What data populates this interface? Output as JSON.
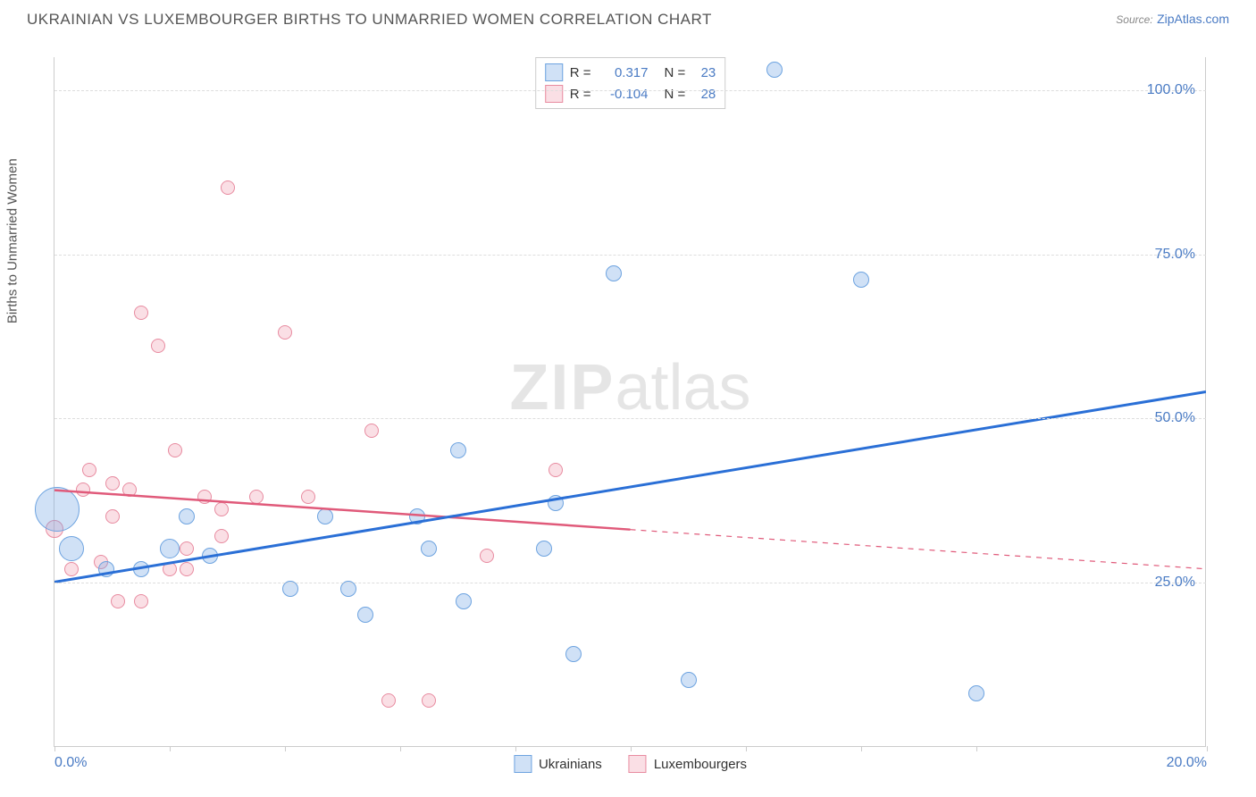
{
  "title": "UKRAINIAN VS LUXEMBOURGER BIRTHS TO UNMARRIED WOMEN CORRELATION CHART",
  "source_label": "Source:",
  "source_link": "ZipAtlas.com",
  "watermark_bold": "ZIP",
  "watermark_rest": "atlas",
  "ylabel": "Births to Unmarried Women",
  "chart": {
    "type": "scatter",
    "xlim": [
      0,
      20
    ],
    "ylim": [
      0,
      105
    ],
    "ytick_values": [
      25,
      50,
      75,
      100
    ],
    "ytick_labels": [
      "25.0%",
      "50.0%",
      "75.0%",
      "100.0%"
    ],
    "xtick_values": [
      0,
      2,
      4,
      6,
      8,
      10,
      12,
      14,
      16,
      20
    ],
    "xtick_labels_visible": {
      "0": "0.0%",
      "20": "20.0%"
    },
    "background_color": "#ffffff",
    "grid_color": "#dddddd",
    "axis_color": "#cccccc",
    "label_color": "#4a7bc4"
  },
  "series": {
    "ukrainians": {
      "label": "Ukrainians",
      "fill": "rgba(120,170,230,0.35)",
      "stroke": "#6da3e0",
      "trend_stroke": "#2a6fd6",
      "r": 0.317,
      "n": 23,
      "trend": {
        "x1": 0,
        "y1": 25,
        "x2": 20,
        "y2": 54
      },
      "points": [
        {
          "x": 0.05,
          "y": 36,
          "r": 25
        },
        {
          "x": 0.3,
          "y": 30,
          "r": 14
        },
        {
          "x": 0.9,
          "y": 27,
          "r": 9
        },
        {
          "x": 1.5,
          "y": 27,
          "r": 9
        },
        {
          "x": 2.0,
          "y": 30,
          "r": 11
        },
        {
          "x": 2.3,
          "y": 35,
          "r": 9
        },
        {
          "x": 2.7,
          "y": 29,
          "r": 9
        },
        {
          "x": 4.1,
          "y": 24,
          "r": 9
        },
        {
          "x": 4.7,
          "y": 35,
          "r": 9
        },
        {
          "x": 5.1,
          "y": 24,
          "r": 9
        },
        {
          "x": 5.4,
          "y": 20,
          "r": 9
        },
        {
          "x": 6.3,
          "y": 35,
          "r": 9
        },
        {
          "x": 6.5,
          "y": 30,
          "r": 9
        },
        {
          "x": 7.0,
          "y": 45,
          "r": 9
        },
        {
          "x": 7.1,
          "y": 22,
          "r": 9
        },
        {
          "x": 8.5,
          "y": 30,
          "r": 9
        },
        {
          "x": 8.7,
          "y": 37,
          "r": 9
        },
        {
          "x": 9.0,
          "y": 14,
          "r": 9
        },
        {
          "x": 9.7,
          "y": 72,
          "r": 9
        },
        {
          "x": 11.0,
          "y": 10,
          "r": 9
        },
        {
          "x": 12.5,
          "y": 103,
          "r": 9
        },
        {
          "x": 14.0,
          "y": 71,
          "r": 9
        },
        {
          "x": 16.0,
          "y": 8,
          "r": 9
        }
      ]
    },
    "luxembourgers": {
      "label": "Luxembourgers",
      "fill": "rgba(240,150,170,0.30)",
      "stroke": "#e88ba0",
      "trend_stroke": "#e05a7a",
      "r": -0.104,
      "n": 28,
      "trend_solid": {
        "x1": 0,
        "y1": 39,
        "x2": 10,
        "y2": 33
      },
      "trend_dashed": {
        "x1": 10,
        "y1": 33,
        "x2": 20,
        "y2": 27
      },
      "points": [
        {
          "x": 0.0,
          "y": 33,
          "r": 10
        },
        {
          "x": 0.3,
          "y": 27,
          "r": 8
        },
        {
          "x": 0.5,
          "y": 39,
          "r": 8
        },
        {
          "x": 0.6,
          "y": 42,
          "r": 8
        },
        {
          "x": 0.8,
          "y": 28,
          "r": 8
        },
        {
          "x": 1.0,
          "y": 40,
          "r": 8
        },
        {
          "x": 1.1,
          "y": 22,
          "r": 8
        },
        {
          "x": 1.3,
          "y": 39,
          "r": 8
        },
        {
          "x": 1.5,
          "y": 66,
          "r": 8
        },
        {
          "x": 1.5,
          "y": 22,
          "r": 8
        },
        {
          "x": 1.8,
          "y": 61,
          "r": 8
        },
        {
          "x": 2.1,
          "y": 45,
          "r": 8
        },
        {
          "x": 2.3,
          "y": 30,
          "r": 8
        },
        {
          "x": 2.3,
          "y": 27,
          "r": 8
        },
        {
          "x": 2.6,
          "y": 38,
          "r": 8
        },
        {
          "x": 2.9,
          "y": 36,
          "r": 8
        },
        {
          "x": 2.9,
          "y": 32,
          "r": 8
        },
        {
          "x": 3.0,
          "y": 85,
          "r": 8
        },
        {
          "x": 3.5,
          "y": 38,
          "r": 8
        },
        {
          "x": 4.0,
          "y": 63,
          "r": 8
        },
        {
          "x": 4.4,
          "y": 38,
          "r": 8
        },
        {
          "x": 5.5,
          "y": 48,
          "r": 8
        },
        {
          "x": 5.8,
          "y": 7,
          "r": 8
        },
        {
          "x": 6.5,
          "y": 7,
          "r": 8
        },
        {
          "x": 7.5,
          "y": 29,
          "r": 8
        },
        {
          "x": 8.7,
          "y": 42,
          "r": 8
        },
        {
          "x": 1.0,
          "y": 35,
          "r": 8
        },
        {
          "x": 2.0,
          "y": 27,
          "r": 8
        }
      ]
    }
  },
  "legend_labels": {
    "r_eq": "R =",
    "n_eq": "N ="
  }
}
